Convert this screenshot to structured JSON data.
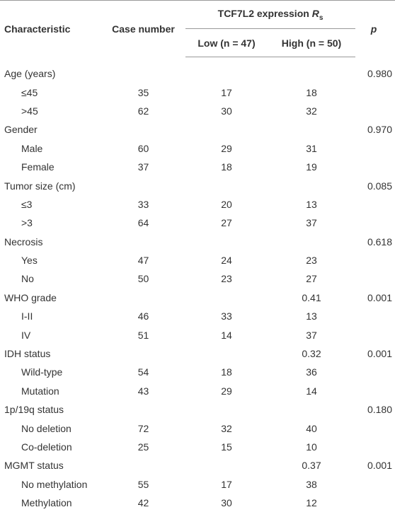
{
  "table": {
    "header": {
      "characteristic": "Characteristic",
      "case_number": "Case number",
      "expression": {
        "text": "TCF7L2 expression",
        "symbol": "R",
        "subscript": "s"
      },
      "low": "Low (n = 47)",
      "high": "High (n = 50)",
      "p": "p"
    },
    "groups": [
      {
        "label": "Age (years)",
        "p": "0.980",
        "items": [
          {
            "label": "≤45",
            "case": "35",
            "low": "17",
            "high": "18"
          },
          {
            "label": ">45",
            "case": "62",
            "low": "30",
            "high": "32"
          }
        ]
      },
      {
        "label": "Gender",
        "p": "0.970",
        "items": [
          {
            "label": "Male",
            "case": "60",
            "low": "29",
            "high": "31"
          },
          {
            "label": "Female",
            "case": "37",
            "low": "18",
            "high": "19"
          }
        ]
      },
      {
        "label": "Tumor size (cm)",
        "p": "0.085",
        "items": [
          {
            "label": "≤3",
            "case": "33",
            "low": "20",
            "high": "13"
          },
          {
            "label": ">3",
            "case": "64",
            "low": "27",
            "high": "37"
          }
        ]
      },
      {
        "label": "Necrosis",
        "p": "0.618",
        "items": [
          {
            "label": "Yes",
            "case": "47",
            "low": "24",
            "high": "23"
          },
          {
            "label": "No",
            "case": "50",
            "low": "23",
            "high": "27"
          }
        ]
      },
      {
        "label": "WHO grade",
        "high": "0.41",
        "p": "0.001",
        "items": [
          {
            "label": "I-II",
            "case": "46",
            "low": "33",
            "high": "13"
          },
          {
            "label": "IV",
            "case": "51",
            "low": "14",
            "high": "37"
          }
        ]
      },
      {
        "label": "IDH status",
        "high": "0.32",
        "p": "0.001",
        "items": [
          {
            "label": "Wild-type",
            "case": "54",
            "low": "18",
            "high": "36"
          },
          {
            "label": "Mutation",
            "case": "43",
            "low": "29",
            "high": "14"
          }
        ]
      },
      {
        "label": "1p/19q status",
        "p": "0.180",
        "items": [
          {
            "label": "No deletion",
            "case": "72",
            "low": "32",
            "high": "40"
          },
          {
            "label": "Co-deletion",
            "case": "25",
            "low": "15",
            "high": "10"
          }
        ]
      },
      {
        "label": "MGMT status",
        "high": "0.37",
        "p": "0.001",
        "items": [
          {
            "label": "No methylation",
            "case": "55",
            "low": "17",
            "high": "38"
          },
          {
            "label": "Methylation",
            "case": "42",
            "low": "30",
            "high": "12"
          }
        ]
      }
    ]
  }
}
